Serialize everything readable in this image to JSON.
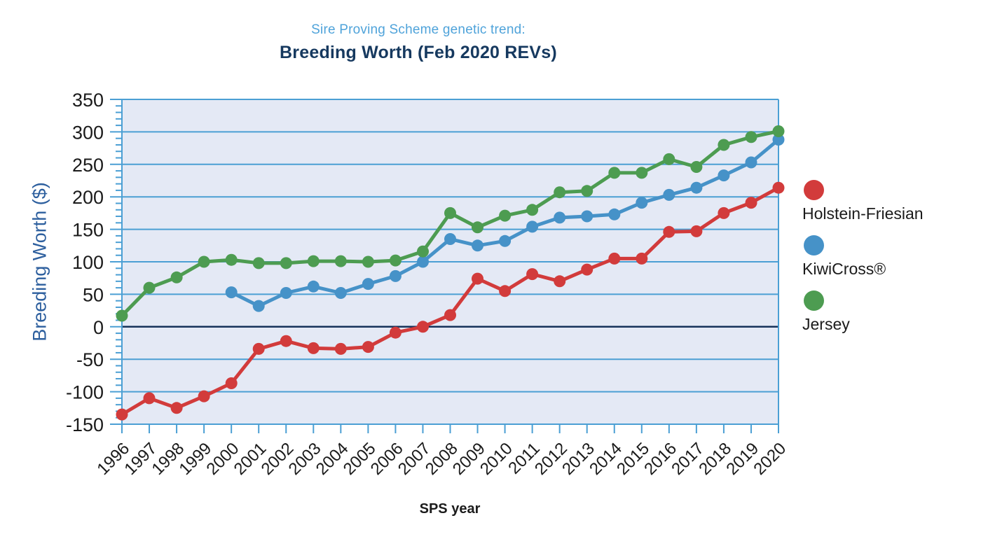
{
  "header": {
    "subtitle": "Sire Proving Scheme genetic trend:",
    "title": "Breeding Worth (Feb 2020 REVs)"
  },
  "legend": [
    {
      "label": "Holstein-Friesian",
      "color": "#d23b3b"
    },
    {
      "label": "KiwiCross®",
      "color": "#4692c8"
    },
    {
      "label": "Jersey",
      "color": "#4d9c51"
    }
  ],
  "chart_data": {
    "type": "line",
    "title": "Breeding Worth (Feb 2020 REVs)",
    "subtitle": "Sire Proving Scheme genetic trend:",
    "xlabel": "SPS year",
    "ylabel": "Breeding Worth ($)",
    "x": [
      1996,
      1997,
      1998,
      1999,
      2000,
      2001,
      2002,
      2003,
      2004,
      2005,
      2006,
      2007,
      2008,
      2009,
      2010,
      2011,
      2012,
      2013,
      2014,
      2015,
      2016,
      2017,
      2018,
      2019,
      2020
    ],
    "series": [
      {
        "name": "Holstein-Friesian",
        "color": "#d23b3b",
        "values": [
          -135,
          -110,
          -125,
          -107,
          -87,
          -34,
          -22,
          -33,
          -34,
          -31,
          -9,
          0,
          18,
          74,
          55,
          81,
          70,
          88,
          105,
          105,
          146,
          147,
          175,
          191,
          214
        ]
      },
      {
        "name": "KiwiCross®",
        "color": "#4692c8",
        "values": [
          null,
          null,
          null,
          null,
          53,
          32,
          52,
          62,
          52,
          66,
          78,
          100,
          135,
          125,
          132,
          154,
          168,
          170,
          173,
          191,
          203,
          214,
          233,
          253,
          288
        ]
      },
      {
        "name": "Jersey",
        "color": "#4d9c51",
        "values": [
          17,
          60,
          76,
          100,
          103,
          98,
          98,
          101,
          101,
          100,
          102,
          116,
          175,
          153,
          171,
          180,
          207,
          209,
          237,
          237,
          258,
          246,
          280,
          292,
          301
        ]
      }
    ],
    "ylim": [
      -150,
      350
    ],
    "ytick_step": 50,
    "y_minor_tick_step": 10,
    "grid": true,
    "zero_line": true,
    "legend_position": "right",
    "style": {
      "plot_bg": "#e4e9f5",
      "grid_color": "#4b9fd4",
      "zero_line_color": "#16325a",
      "axis_color": "#4b9fd4"
    }
  }
}
